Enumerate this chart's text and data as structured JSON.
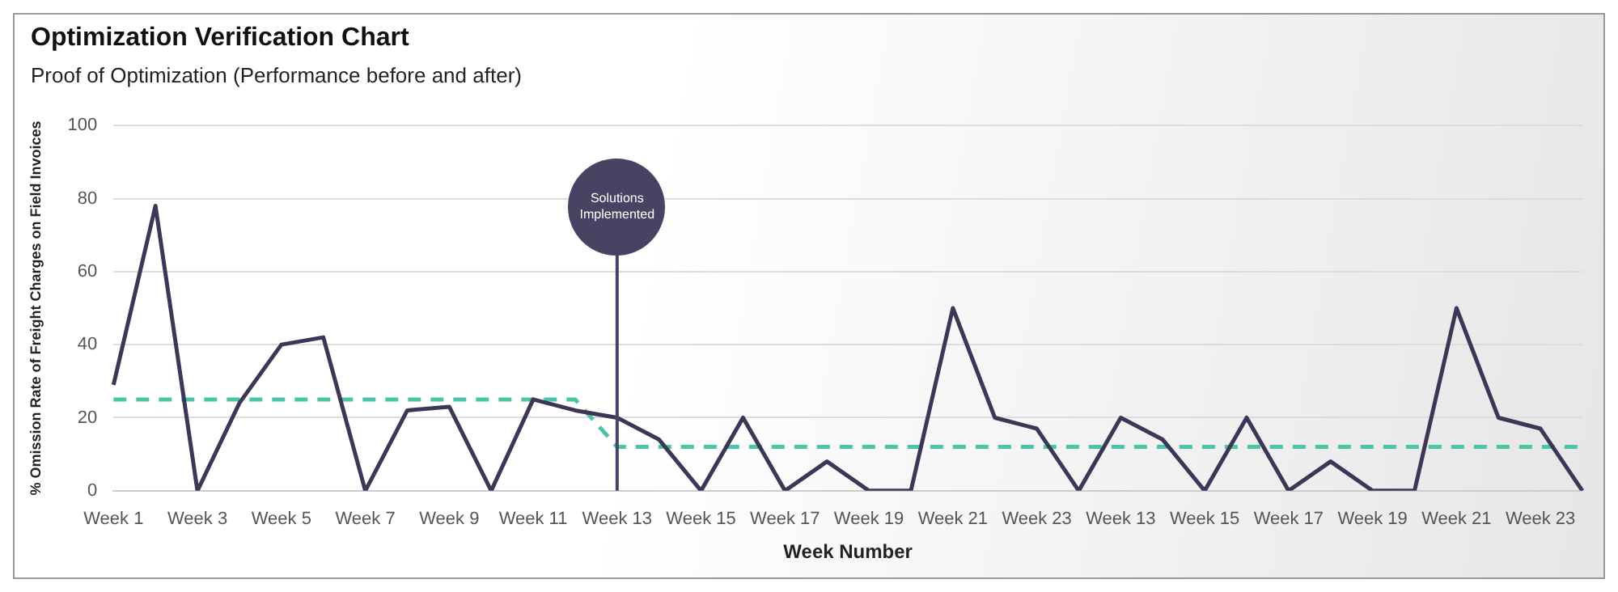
{
  "chart_data": {
    "type": "line",
    "title": "Optimization Verification Chart",
    "subtitle": "Proof of Optimization (Performance before and after)",
    "xlabel": "Week Number",
    "ylabel": "% Omission Rate of Freight Charges on Field Invoices",
    "categories": [
      "Week 1",
      null,
      "Week 3",
      null,
      "Week 5",
      null,
      "Week 7",
      null,
      "Week 9",
      null,
      "Week 11",
      null,
      "Week 13",
      null,
      "Week 15",
      null,
      "Week 17",
      null,
      "Week 19",
      null,
      "Week 21",
      null,
      "Week 23",
      null,
      "Week 13",
      null,
      "Week 15",
      null,
      "Week 17",
      null,
      "Week 19",
      null,
      "Week 21",
      null,
      "Week 23",
      null
    ],
    "series": [
      {
        "color": "#3d3757",
        "line_style": "solid",
        "values": [
          29,
          78,
          0,
          24,
          40,
          42,
          0,
          22,
          23,
          0,
          25,
          22,
          20,
          14,
          0,
          20,
          0,
          8,
          0,
          0,
          50,
          20,
          17,
          0,
          20,
          14,
          0,
          20,
          0,
          8,
          0,
          0,
          50,
          20,
          17,
          0
        ]
      },
      {
        "color": "#4cc4a6",
        "line_style": "dashed",
        "values": [
          25,
          25,
          25,
          25,
          25,
          25,
          25,
          25,
          25,
          25,
          25,
          25,
          12,
          12,
          12,
          12,
          12,
          12,
          12,
          12,
          12,
          12,
          12,
          12,
          12,
          12,
          12,
          12,
          12,
          12,
          12,
          12,
          12,
          12,
          12,
          12
        ]
      }
    ],
    "ref_lines": [
      {
        "axis": "x",
        "value": "Week 13",
        "label": "Solutions Implemented",
        "color": "#4a4263"
      }
    ],
    "ylim": [
      0,
      100
    ],
    "yticks": [
      0,
      20,
      40,
      60,
      80,
      100
    ],
    "grid": "y",
    "legend": false,
    "marker": "none"
  }
}
